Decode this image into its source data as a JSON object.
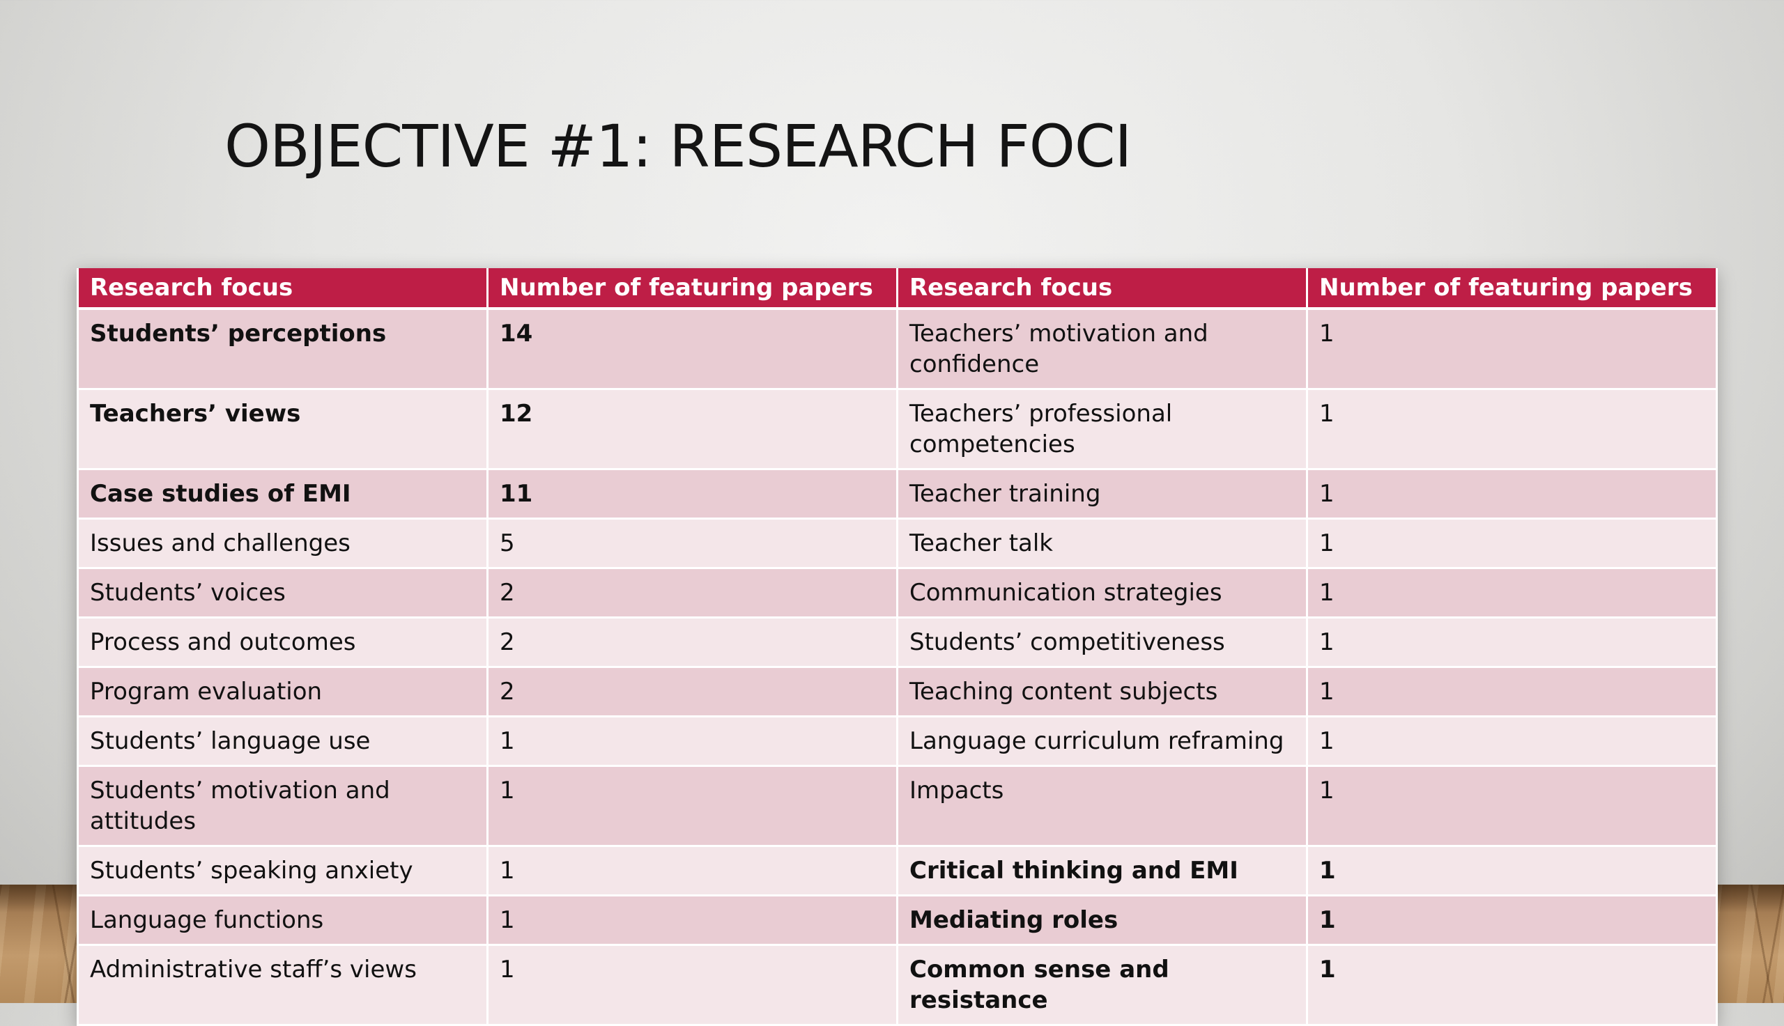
{
  "slide": {
    "title": "OBJECTIVE #1: RESEARCH FOCI"
  },
  "table": {
    "headers": [
      "Research focus",
      "Number of featuring papers",
      "Research focus",
      "Number of featuring papers"
    ],
    "rows": [
      {
        "focus_left": "Students’ perceptions",
        "count_left": "14",
        "bold_left": true,
        "focus_right": "Teachers’ motivation and confidence",
        "count_right": "1",
        "bold_right": false
      },
      {
        "focus_left": "Teachers’ views",
        "count_left": "12",
        "bold_left": true,
        "focus_right": "Teachers’ professional competencies",
        "count_right": "1",
        "bold_right": false
      },
      {
        "focus_left": "Case studies of EMI",
        "count_left": "11",
        "bold_left": true,
        "focus_right": "Teacher training",
        "count_right": "1",
        "bold_right": false
      },
      {
        "focus_left": "Issues and challenges",
        "count_left": "5",
        "bold_left": false,
        "focus_right": "Teacher talk",
        "count_right": "1",
        "bold_right": false
      },
      {
        "focus_left": "Students’ voices",
        "count_left": "2",
        "bold_left": false,
        "focus_right": "Communication strategies",
        "count_right": "1",
        "bold_right": false
      },
      {
        "focus_left": "Process and outcomes",
        "count_left": "2",
        "bold_left": false,
        "focus_right": "Students’ competitiveness",
        "count_right": "1",
        "bold_right": false
      },
      {
        "focus_left": "Program evaluation",
        "count_left": "2",
        "bold_left": false,
        "focus_right": "Teaching content subjects",
        "count_right": "1",
        "bold_right": false
      },
      {
        "focus_left": "Students’ language use",
        "count_left": "1",
        "bold_left": false,
        "focus_right": "Language curriculum reframing",
        "count_right": "1",
        "bold_right": false
      },
      {
        "focus_left": "Students’ motivation and attitudes",
        "count_left": "1",
        "bold_left": false,
        "focus_right": "Impacts",
        "count_right": "1",
        "bold_right": false
      },
      {
        "focus_left": "Students’ speaking anxiety",
        "count_left": "1",
        "bold_left": false,
        "focus_right": "Critical thinking and EMI",
        "count_right": "1",
        "bold_right": true
      },
      {
        "focus_left": "Language functions",
        "count_left": "1",
        "bold_left": false,
        "focus_right": "Mediating roles",
        "count_right": "1",
        "bold_right": true
      },
      {
        "focus_left": "Administrative staff’s views",
        "count_left": "1",
        "bold_left": false,
        "focus_right": "Common sense and resistance",
        "count_right": "1",
        "bold_right": true
      }
    ]
  },
  "colors": {
    "header_bg": "#be1e46",
    "row_dark": "#e9ccd3",
    "row_light": "#f4e6e9"
  }
}
